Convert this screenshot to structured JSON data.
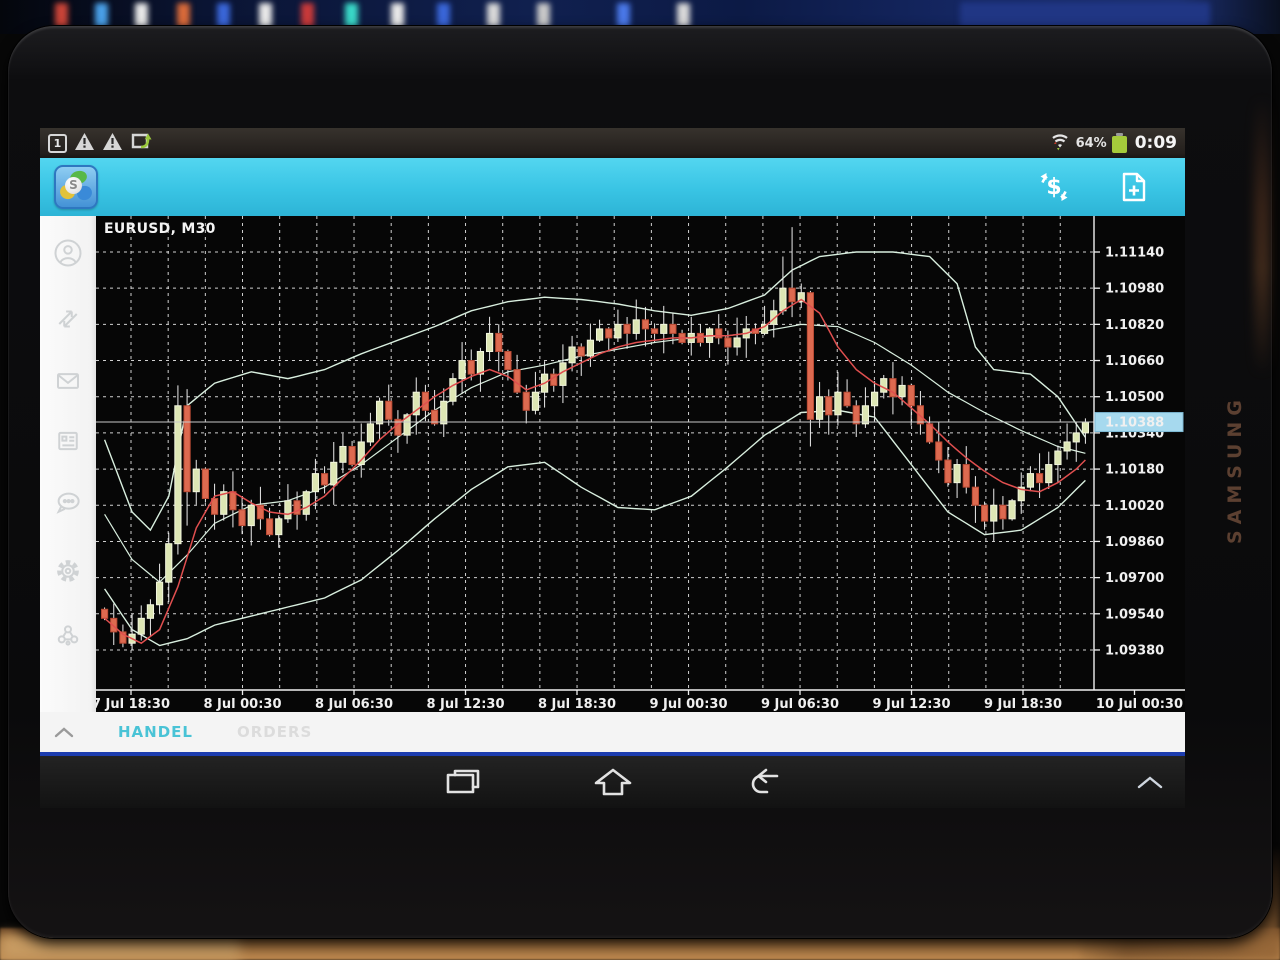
{
  "device": {
    "brand": "SAMSUNG"
  },
  "status_bar": {
    "notification_count": "1",
    "left_icons": [
      "notification-count",
      "warning",
      "warning",
      "screenshot"
    ],
    "wifi_icon": "wifi-data-arrows",
    "battery_percent": "64%",
    "battery_icon": "battery-green",
    "time": "0:09"
  },
  "toolbar": {
    "app_icon": "metatrader-logo",
    "actions": [
      {
        "icon": "quotes-dollar"
      },
      {
        "icon": "new-order-document"
      }
    ]
  },
  "sidebar": {
    "items": [
      {
        "icon": "account-person"
      },
      {
        "icon": "trade-arrows"
      },
      {
        "icon": "mailbox-envelope"
      },
      {
        "icon": "news-journal"
      },
      {
        "icon": "chat-bubble"
      },
      {
        "icon": "settings-gear"
      },
      {
        "icon": "community-network"
      }
    ]
  },
  "chart": {
    "title": "EURUSD, M30"
  },
  "chart_data": {
    "type": "candlestick",
    "symbol": "EURUSD",
    "timeframe": "M30",
    "title": "EURUSD, M30",
    "current_price": "1.10388",
    "price_axis_ticks": [
      "1.11140",
      "1.10980",
      "1.10820",
      "1.10660",
      "1.10500",
      "1.10340",
      "1.10180",
      "1.10020",
      "1.09860",
      "1.09700",
      "1.09540",
      "1.09380"
    ],
    "tick_interval": 0.0016,
    "time_axis_ticks": [
      "7 Jul 18:30",
      "8 Jul 00:30",
      "8 Jul 06:30",
      "8 Jul 12:30",
      "8 Jul 18:30",
      "9 Jul 00:30",
      "9 Jul 06:30",
      "9 Jul 12:30",
      "9 Jul 18:30",
      "10 Jul 00:30"
    ],
    "ylim": [
      1.09203,
      1.11299
    ],
    "grid": true,
    "first_open": 1.0956,
    "closes": [
      1.0952,
      1.0946,
      1.0941,
      1.0945,
      1.0952,
      1.0958,
      1.0968,
      1.0985,
      1.1046,
      1.1008,
      1.1018,
      1.1005,
      1.0998,
      1.1008,
      1.1,
      1.0993,
      1.1002,
      1.0996,
      1.0989,
      1.0996,
      1.1004,
      1.0998,
      1.1008,
      1.1016,
      1.1011,
      1.1021,
      1.1028,
      1.102,
      1.103,
      1.1038,
      1.1048,
      1.104,
      1.1033,
      1.1042,
      1.1052,
      1.1044,
      1.1038,
      1.1048,
      1.1058,
      1.1066,
      1.106,
      1.107,
      1.1078,
      1.107,
      1.1062,
      1.1052,
      1.1044,
      1.1052,
      1.106,
      1.1055,
      1.1065,
      1.1072,
      1.1068,
      1.1075,
      1.108,
      1.1076,
      1.1082,
      1.1078,
      1.1084,
      1.108,
      1.1078,
      1.1082,
      1.1078,
      1.1074,
      1.1078,
      1.1074,
      1.108,
      1.1076,
      1.1072,
      1.1076,
      1.108,
      1.1078,
      1.1082,
      1.1088,
      1.1098,
      1.1092,
      1.1096,
      1.104,
      1.105,
      1.1042,
      1.1052,
      1.1046,
      1.1038,
      1.1046,
      1.1052,
      1.1058,
      1.105,
      1.1055,
      1.1046,
      1.1038,
      1.103,
      1.1022,
      1.1012,
      1.102,
      1.101,
      1.1002,
      1.0995,
      1.1002,
      1.0996,
      1.1004,
      1.101,
      1.1016,
      1.1012,
      1.102,
      1.1026,
      1.103,
      1.1034,
      1.10388
    ],
    "wick_overrides": {
      "3": {
        "low": 1.0938
      },
      "8": {
        "high": 1.1055
      },
      "9": {
        "low": 1.0993
      },
      "74": {
        "high": 1.1112
      },
      "75": {
        "high": 1.1125
      },
      "77": {
        "low": 1.1028
      }
    },
    "indicator_lines": {
      "bb_upper": [
        [
          0,
          1.1031
        ],
        [
          3,
          1.0999
        ],
        [
          5,
          1.0991
        ],
        [
          7,
          1.1006
        ],
        [
          9,
          1.1046
        ],
        [
          12,
          1.1056
        ],
        [
          16,
          1.1061
        ],
        [
          20,
          1.1058
        ],
        [
          24,
          1.1062
        ],
        [
          28,
          1.1069
        ],
        [
          32,
          1.1075
        ],
        [
          36,
          1.1081
        ],
        [
          40,
          1.1088
        ],
        [
          44,
          1.1092
        ],
        [
          48,
          1.1094
        ],
        [
          52,
          1.1093
        ],
        [
          56,
          1.1091
        ],
        [
          60,
          1.1088
        ],
        [
          64,
          1.1086
        ],
        [
          68,
          1.1089
        ],
        [
          72,
          1.1095
        ],
        [
          75,
          1.1106
        ],
        [
          78,
          1.1112
        ],
        [
          82,
          1.1114
        ],
        [
          86,
          1.1114
        ],
        [
          90,
          1.1112
        ],
        [
          93,
          1.11
        ],
        [
          95,
          1.1072
        ],
        [
          97,
          1.1062
        ],
        [
          101,
          1.106
        ],
        [
          104,
          1.105
        ],
        [
          107,
          1.1032
        ]
      ],
      "bb_middle": [
        [
          0,
          1.0998
        ],
        [
          3,
          1.0978
        ],
        [
          6,
          1.0968
        ],
        [
          9,
          1.098
        ],
        [
          12,
          1.0994
        ],
        [
          16,
          1.1002
        ],
        [
          20,
          1.1004
        ],
        [
          24,
          1.101
        ],
        [
          28,
          1.102
        ],
        [
          32,
          1.1032
        ],
        [
          36,
          1.1044
        ],
        [
          40,
          1.1054
        ],
        [
          44,
          1.1061
        ],
        [
          48,
          1.1064
        ],
        [
          52,
          1.1068
        ],
        [
          56,
          1.1071
        ],
        [
          60,
          1.1074
        ],
        [
          64,
          1.1076
        ],
        [
          68,
          1.1077
        ],
        [
          72,
          1.1079
        ],
        [
          76,
          1.1082
        ],
        [
          80,
          1.1081
        ],
        [
          84,
          1.1074
        ],
        [
          88,
          1.1064
        ],
        [
          92,
          1.1052
        ],
        [
          96,
          1.1043
        ],
        [
          100,
          1.1035
        ],
        [
          104,
          1.1028
        ],
        [
          107,
          1.1025
        ]
      ],
      "bb_lower": [
        [
          0,
          1.0965
        ],
        [
          3,
          1.0947
        ],
        [
          6,
          1.094
        ],
        [
          9,
          1.0943
        ],
        [
          12,
          1.0949
        ],
        [
          16,
          1.0953
        ],
        [
          20,
          1.0957
        ],
        [
          24,
          1.0961
        ],
        [
          28,
          1.0969
        ],
        [
          32,
          1.0982
        ],
        [
          36,
          1.0996
        ],
        [
          40,
          1.1009
        ],
        [
          44,
          1.1019
        ],
        [
          48,
          1.1021
        ],
        [
          52,
          1.101
        ],
        [
          56,
          1.1001
        ],
        [
          60,
          1.1
        ],
        [
          64,
          1.1006
        ],
        [
          68,
          1.1019
        ],
        [
          72,
          1.1033
        ],
        [
          76,
          1.1043
        ],
        [
          80,
          1.1044
        ],
        [
          84,
          1.1041
        ],
        [
          88,
          1.102
        ],
        [
          92,
          1.0999
        ],
        [
          96,
          1.0989
        ],
        [
          100,
          1.0991
        ],
        [
          104,
          1.1001
        ],
        [
          107,
          1.1013
        ]
      ],
      "red_ma": [
        [
          0,
          1.0952
        ],
        [
          2,
          1.0945
        ],
        [
          4,
          1.0941
        ],
        [
          6,
          1.0947
        ],
        [
          8,
          1.0966
        ],
        [
          10,
          1.0992
        ],
        [
          12,
          1.1006
        ],
        [
          14,
          1.1008
        ],
        [
          16,
          1.1003
        ],
        [
          18,
          1.0999
        ],
        [
          20,
          1.0998
        ],
        [
          22,
          1.1001
        ],
        [
          24,
          1.1006
        ],
        [
          26,
          1.1014
        ],
        [
          28,
          1.1022
        ],
        [
          30,
          1.1031
        ],
        [
          32,
          1.1038
        ],
        [
          34,
          1.1044
        ],
        [
          36,
          1.105
        ],
        [
          38,
          1.1055
        ],
        [
          40,
          1.1059
        ],
        [
          42,
          1.1062
        ],
        [
          44,
          1.1059
        ],
        [
          46,
          1.1053
        ],
        [
          48,
          1.1056
        ],
        [
          50,
          1.1061
        ],
        [
          52,
          1.1065
        ],
        [
          54,
          1.1069
        ],
        [
          56,
          1.1072
        ],
        [
          58,
          1.1074
        ],
        [
          60,
          1.1075
        ],
        [
          62,
          1.1076
        ],
        [
          64,
          1.1076
        ],
        [
          66,
          1.1077
        ],
        [
          68,
          1.1077
        ],
        [
          70,
          1.1078
        ],
        [
          72,
          1.1081
        ],
        [
          74,
          1.1088
        ],
        [
          76,
          1.1093
        ],
        [
          78,
          1.1087
        ],
        [
          80,
          1.1072
        ],
        [
          82,
          1.1062
        ],
        [
          84,
          1.1056
        ],
        [
          86,
          1.1052
        ],
        [
          88,
          1.1045
        ],
        [
          90,
          1.1038
        ],
        [
          92,
          1.103
        ],
        [
          94,
          1.1023
        ],
        [
          96,
          1.1017
        ],
        [
          98,
          1.1012
        ],
        [
          100,
          1.1009
        ],
        [
          102,
          1.1008
        ],
        [
          104,
          1.1012
        ],
        [
          106,
          1.1018
        ],
        [
          107,
          1.1022
        ]
      ]
    },
    "colors": {
      "background": "#060606",
      "grid": "#e6e6e6",
      "bull": "#dde6b4",
      "bull_stroke": "#f2f6de",
      "bear": "#dd6a50",
      "bear_stroke": "#b84a34",
      "wick": "#ececec",
      "bands": "#d9efdf",
      "ma": "#e04f4f",
      "axis_text": "#f0f0f0",
      "price_tag_bg": "#a6d9ee",
      "price_tag_text": "#10303f",
      "current_price_line": "#c8c8c8"
    }
  },
  "tabs": {
    "collapse_icon": "chevron-up",
    "items": [
      {
        "label": "HANDEL",
        "active": true
      },
      {
        "label": "ORDERS",
        "active": false
      }
    ]
  },
  "nav_bar": {
    "items": [
      {
        "icon": "recent-apps"
      },
      {
        "icon": "home"
      },
      {
        "icon": "back"
      }
    ],
    "right_icon": "chevron-up"
  }
}
